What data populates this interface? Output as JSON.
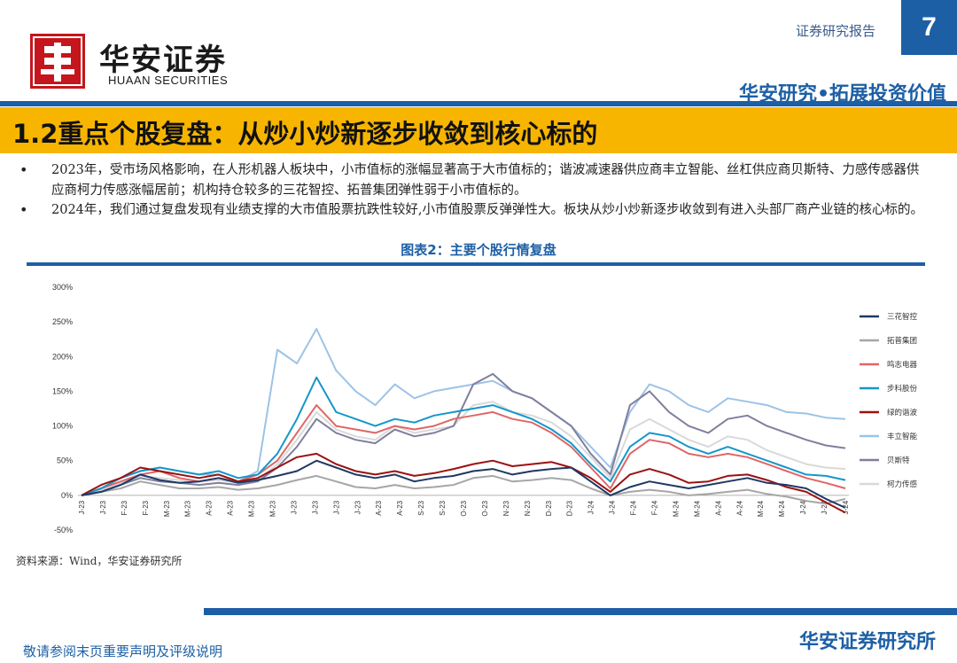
{
  "header": {
    "logo_cn": "华安证券",
    "logo_en": "HUAAN SECURITIES",
    "report_type": "证券研究报告",
    "page_number": "7",
    "slogan": "华安研究•拓展投资价值"
  },
  "section_title": "1.2重点个股复盘：从炒小炒新逐步收敛到核心标的",
  "bullets": [
    "2023年，受市场风格影响，在人形机器人板块中，小市值标的涨幅显著高于大市值标的；谐波减速器供应商丰立智能、丝杠供应商贝斯特、力感传感器供应商柯力传感涨幅居前；机构持仓较多的三花智控、拓普集团弹性弱于小市值标的。",
    "2024年，我们通过复盘发现有业绩支撑的大市值股票抗跌性较好,小市值股票反弹弹性大。板块从炒小炒新逐步收敛到有进入头部厂商产业链的核心标的。"
  ],
  "figure_title": "图表2：主要个股行情复盘",
  "source": "资料来源：Wind，华安证券研究所",
  "footer": {
    "disclaimer": "敬请参阅末页重要声明及评级说明",
    "brand": "华安证券研究所"
  },
  "chart_data": {
    "type": "line",
    "ylim": [
      -50,
      300
    ],
    "yticks": [
      "-50%",
      "0%",
      "50%",
      "100%",
      "150%",
      "200%",
      "250%",
      "300%"
    ],
    "ytick_values": [
      -50,
      0,
      50,
      100,
      150,
      200,
      250,
      300
    ],
    "xticks": [
      "J-23",
      "J-23",
      "F-23",
      "F-23",
      "M-23",
      "M-23",
      "A-23",
      "A-23",
      "M-23",
      "M-23",
      "J-23",
      "J-23",
      "J-23",
      "J-23",
      "A-23",
      "A-23",
      "S-23",
      "S-23",
      "O-23",
      "O-23",
      "N-23",
      "N-23",
      "D-23",
      "D-23",
      "J-24",
      "J-24",
      "F-24",
      "F-24",
      "M-24",
      "M-24",
      "A-24",
      "A-24",
      "M-24",
      "M-24",
      "J-24",
      "J-24",
      "J-24"
    ],
    "legend_position": "right",
    "series": [
      {
        "name": "三花智控",
        "color": "#1f3864",
        "values": [
          0,
          5,
          15,
          30,
          22,
          18,
          20,
          25,
          18,
          22,
          28,
          35,
          50,
          40,
          30,
          25,
          30,
          20,
          25,
          28,
          35,
          38,
          30,
          35,
          38,
          40,
          20,
          0,
          12,
          20,
          15,
          10,
          15,
          20,
          25,
          18,
          15,
          10,
          -5,
          -18
        ]
      },
      {
        "name": "拓普集团",
        "color": "#a6a6a6",
        "values": [
          0,
          5,
          10,
          20,
          15,
          10,
          10,
          12,
          8,
          10,
          15,
          22,
          28,
          20,
          12,
          10,
          15,
          10,
          12,
          15,
          25,
          28,
          20,
          22,
          25,
          22,
          10,
          0,
          5,
          8,
          5,
          0,
          2,
          5,
          8,
          2,
          -2,
          -8,
          -12,
          -5
        ]
      },
      {
        "name": "鸣志电器",
        "color": "#e06666",
        "values": [
          0,
          10,
          20,
          30,
          35,
          25,
          20,
          25,
          20,
          30,
          50,
          90,
          130,
          100,
          95,
          90,
          100,
          95,
          100,
          110,
          115,
          120,
          110,
          105,
          90,
          70,
          40,
          10,
          60,
          80,
          75,
          60,
          55,
          60,
          55,
          45,
          35,
          25,
          18,
          10
        ]
      },
      {
        "name": "步科股份",
        "color": "#1597c9",
        "values": [
          0,
          10,
          25,
          35,
          40,
          35,
          30,
          35,
          25,
          30,
          60,
          110,
          170,
          120,
          110,
          100,
          110,
          105,
          115,
          120,
          125,
          130,
          120,
          110,
          95,
          75,
          45,
          20,
          70,
          90,
          85,
          70,
          60,
          70,
          60,
          50,
          40,
          30,
          28,
          22
        ]
      },
      {
        "name": "绿的谐波",
        "color": "#9b1111",
        "values": [
          0,
          15,
          25,
          40,
          35,
          30,
          25,
          30,
          20,
          25,
          40,
          55,
          60,
          45,
          35,
          30,
          35,
          28,
          32,
          38,
          45,
          50,
          42,
          45,
          48,
          40,
          25,
          5,
          30,
          38,
          30,
          18,
          20,
          28,
          30,
          22,
          12,
          5,
          -10,
          -25
        ]
      },
      {
        "name": "丰立智能",
        "color": "#9dc3e6",
        "values": [
          0,
          10,
          25,
          35,
          40,
          35,
          30,
          30,
          20,
          35,
          210,
          190,
          240,
          180,
          150,
          130,
          160,
          140,
          150,
          155,
          160,
          165,
          150,
          140,
          120,
          100,
          70,
          40,
          120,
          160,
          150,
          130,
          120,
          140,
          135,
          130,
          120,
          118,
          112,
          110
        ]
      },
      {
        "name": "贝斯特",
        "color": "#7f7f9e",
        "values": [
          0,
          5,
          15,
          25,
          20,
          18,
          15,
          18,
          15,
          20,
          40,
          70,
          110,
          90,
          80,
          75,
          95,
          85,
          90,
          100,
          160,
          175,
          150,
          140,
          120,
          100,
          60,
          30,
          130,
          150,
          120,
          100,
          90,
          110,
          115,
          100,
          90,
          80,
          72,
          68
        ]
      },
      {
        "name": "柯力传感",
        "color": "#d9d9d9",
        "values": [
          0,
          8,
          18,
          28,
          25,
          22,
          20,
          22,
          18,
          22,
          45,
          80,
          120,
          95,
          85,
          80,
          100,
          90,
          95,
          100,
          130,
          135,
          120,
          115,
          105,
          85,
          55,
          25,
          95,
          110,
          95,
          80,
          70,
          85,
          80,
          65,
          55,
          45,
          40,
          38
        ]
      }
    ]
  }
}
